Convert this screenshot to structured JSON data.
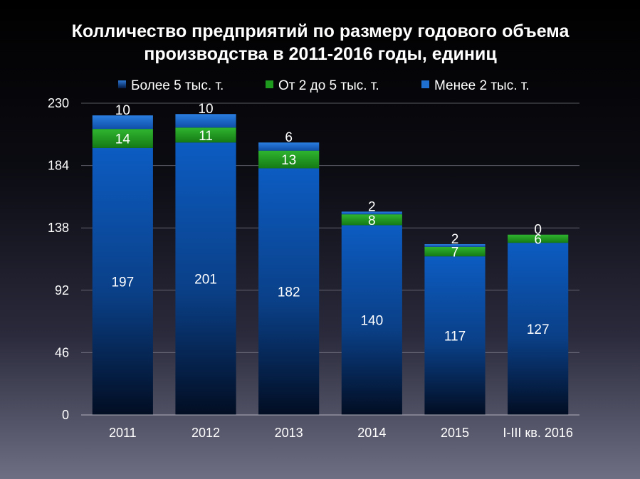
{
  "chart_data": {
    "type": "bar",
    "stacked": true,
    "title": "Колличество предприятий по размеру годового объема производства в 2011-2016 годы, единиц",
    "title_lines": [
      "Колличество предприятий по размеру годового объема",
      "производства в 2011-2016 годы, единиц"
    ],
    "categories": [
      "2011",
      "2012",
      "2013",
      "2014",
      "2015",
      "I-III кв. 2016"
    ],
    "legend": [
      "Более 5 тыс. т.",
      "От 2 до 5 тыс. т.",
      "Менее 2 тыс. т."
    ],
    "legend_position": "top",
    "series": [
      {
        "name": "Менее 2 тыс. т.",
        "values": [
          197,
          201,
          182,
          140,
          117,
          127
        ],
        "color": "#0a56b8"
      },
      {
        "name": "От 2 до 5 тыс. т.",
        "values": [
          14,
          11,
          13,
          8,
          7,
          6
        ],
        "color": "#1e9a1e"
      },
      {
        "name": "Более 5 тыс. т.",
        "values": [
          10,
          10,
          6,
          2,
          2,
          0
        ],
        "color": "#1f6fd0"
      }
    ],
    "ylim": [
      0,
      230
    ],
    "yticks": [
      0,
      46,
      92,
      138,
      184,
      230
    ],
    "grid": true,
    "xlabel": "",
    "ylabel": ""
  }
}
